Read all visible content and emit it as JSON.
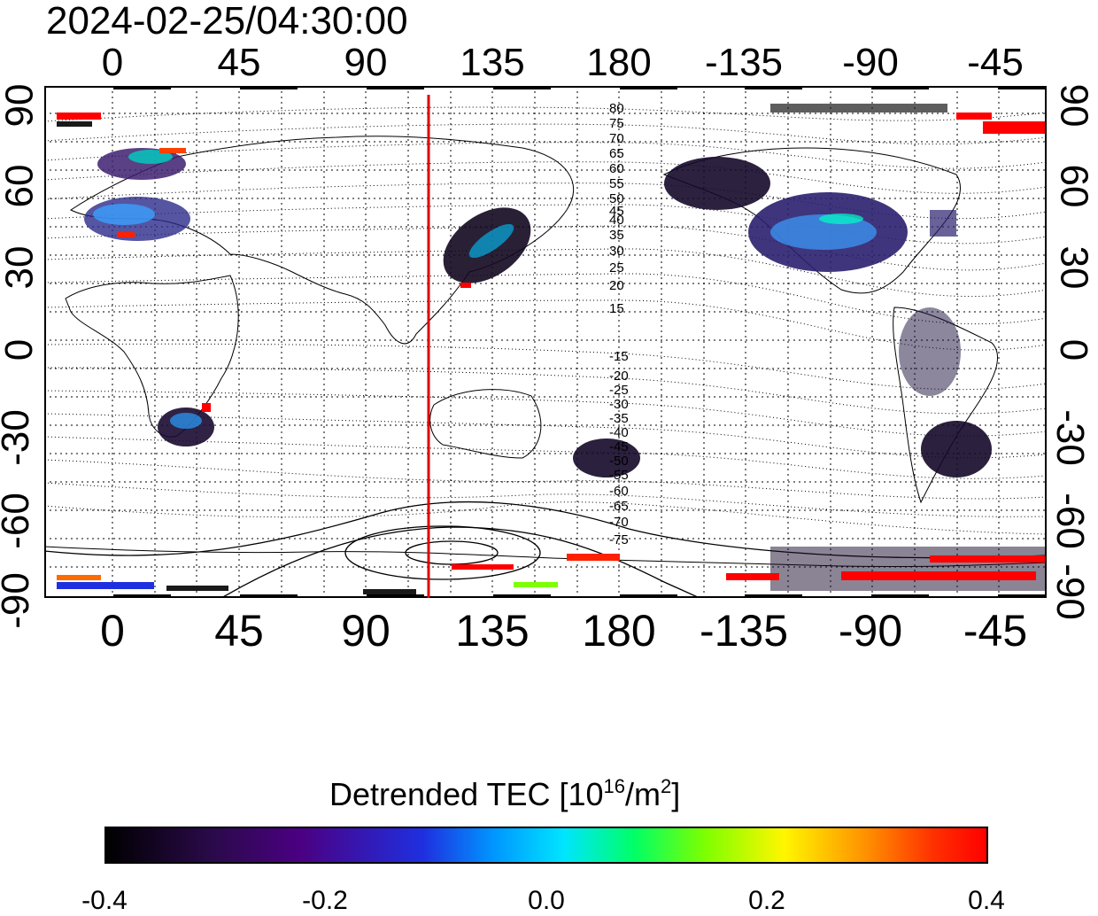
{
  "timestamp": "2024-02-25/04:30:00",
  "map": {
    "lon_ticks_top": [
      "0",
      "45",
      "90",
      "135",
      "180",
      "-135",
      "-90",
      "-45"
    ],
    "lon_ticks_bottom": [
      "0",
      "45",
      "90",
      "135",
      "180",
      "-135",
      "-90",
      "-45"
    ],
    "lat_ticks_left": [
      "90",
      "60",
      "30",
      "0",
      "-30",
      "-60",
      "-90"
    ],
    "lat_ticks_right": [
      "90",
      "60",
      "30",
      "0",
      "-30",
      "-60",
      "-90"
    ],
    "contour_labels_north": [
      "80",
      "75",
      "70",
      "65",
      "60",
      "55",
      "50",
      "45",
      "40",
      "35",
      "30",
      "25",
      "20",
      "15"
    ],
    "contour_labels_south": [
      "-15",
      "-20",
      "-25",
      "-30",
      "-35",
      "-40",
      "-45",
      "-50",
      "-55",
      "-60",
      "-65",
      "-70",
      "-75"
    ],
    "terminator_longitude": 112,
    "terminator_color": "#e00000",
    "grid_style": "dotted"
  },
  "colorbar": {
    "title_main": "Detrended TEC  [10",
    "title_exp1": "16",
    "title_mid": "/m",
    "title_exp2": "2",
    "title_end": "]",
    "tick_labels": [
      "-0.4",
      "-0.2",
      "0.0",
      "0.2",
      "0.4"
    ],
    "range": [
      -0.4,
      0.4
    ],
    "colors": [
      "#000000",
      "#4b0082",
      "#1f2fe0",
      "#00e5ff",
      "#00ff66",
      "#fff600",
      "#ff9400",
      "#ff0000"
    ]
  }
}
